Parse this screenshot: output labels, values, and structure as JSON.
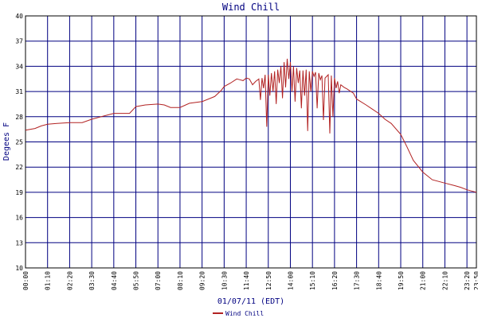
{
  "chart_data": {
    "type": "line",
    "title": "Wind Chill",
    "xlabel": "01/07/11 (EDT)",
    "ylabel": "Degees F",
    "ylim": [
      10,
      40
    ],
    "yticks": [
      10,
      13,
      16,
      19,
      22,
      25,
      28,
      31,
      34,
      37,
      40
    ],
    "xlim": [
      0,
      1430
    ],
    "xticks": [
      {
        "m": 0,
        "label": "00:00"
      },
      {
        "m": 70,
        "label": "01:10"
      },
      {
        "m": 140,
        "label": "02:20"
      },
      {
        "m": 210,
        "label": "03:30"
      },
      {
        "m": 280,
        "label": "04:40"
      },
      {
        "m": 350,
        "label": "05:50"
      },
      {
        "m": 420,
        "label": "07:00"
      },
      {
        "m": 490,
        "label": "08:10"
      },
      {
        "m": 560,
        "label": "09:20"
      },
      {
        "m": 630,
        "label": "10:30"
      },
      {
        "m": 700,
        "label": "11:40"
      },
      {
        "m": 770,
        "label": "12:50"
      },
      {
        "m": 840,
        "label": "14:00"
      },
      {
        "m": 910,
        "label": "15:10"
      },
      {
        "m": 980,
        "label": "16:20"
      },
      {
        "m": 1050,
        "label": "17:30"
      },
      {
        "m": 1120,
        "label": "18:40"
      },
      {
        "m": 1190,
        "label": "19:50"
      },
      {
        "m": 1260,
        "label": "21:00"
      },
      {
        "m": 1330,
        "label": "22:10"
      },
      {
        "m": 1400,
        "label": "23:20"
      },
      {
        "m": 1430,
        "label": "23:50"
      }
    ],
    "grid": true,
    "legend_position": "bottom-center",
    "colors": {
      "series": "#b22222",
      "grid": "#000080",
      "axis": "#000000",
      "title": "#000080"
    },
    "series": [
      {
        "name": "Wind Chill",
        "x": [
          0,
          30,
          50,
          70,
          100,
          140,
          180,
          210,
          240,
          280,
          330,
          350,
          380,
          420,
          440,
          460,
          490,
          520,
          560,
          600,
          620,
          630,
          650,
          670,
          680,
          690,
          700,
          710,
          720,
          730,
          740,
          745,
          750,
          755,
          760,
          765,
          770,
          775,
          780,
          785,
          790,
          795,
          800,
          805,
          810,
          815,
          820,
          825,
          830,
          835,
          840,
          845,
          850,
          855,
          860,
          865,
          870,
          875,
          880,
          885,
          890,
          895,
          900,
          905,
          910,
          915,
          920,
          925,
          930,
          935,
          940,
          945,
          950,
          955,
          960,
          965,
          970,
          975,
          980,
          985,
          990,
          995,
          1000,
          1010,
          1020,
          1040,
          1050,
          1080,
          1100,
          1120,
          1140,
          1160,
          1190,
          1210,
          1230,
          1260,
          1290,
          1310,
          1330,
          1360,
          1380,
          1400,
          1420,
          1430
        ],
        "values": [
          26.4,
          26.6,
          26.9,
          27.1,
          27.2,
          27.3,
          27.3,
          27.7,
          28.0,
          28.4,
          28.4,
          29.2,
          29.4,
          29.5,
          29.4,
          29.1,
          29.1,
          29.6,
          29.8,
          30.4,
          31.1,
          31.6,
          32.0,
          32.5,
          32.4,
          32.3,
          32.6,
          32.5,
          31.8,
          32.2,
          32.5,
          30.0,
          32.6,
          31.4,
          33.0,
          26.8,
          33.0,
          30.5,
          33.2,
          31.0,
          33.4,
          29.5,
          33.6,
          32.0,
          34.0,
          30.2,
          34.5,
          31.5,
          34.9,
          32.5,
          34.5,
          31.0,
          34.0,
          29.8,
          33.8,
          32.0,
          33.5,
          29.0,
          33.5,
          30.5,
          33.6,
          26.3,
          33.4,
          31.0,
          33.4,
          32.8,
          33.3,
          29.0,
          33.2,
          32.4,
          32.9,
          27.6,
          32.6,
          32.8,
          33.0,
          26.0,
          32.9,
          28.0,
          32.6,
          31.4,
          32.2,
          30.8,
          31.8,
          31.5,
          31.3,
          30.8,
          30.1,
          29.4,
          28.9,
          28.4,
          27.7,
          27.2,
          25.9,
          24.4,
          22.8,
          21.4,
          20.5,
          20.3,
          20.1,
          19.8,
          19.6,
          19.3,
          19.1,
          19.0
        ]
      }
    ]
  }
}
